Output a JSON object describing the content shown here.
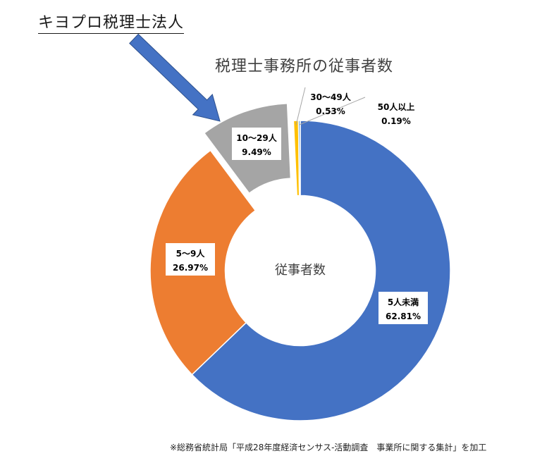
{
  "brand": {
    "name": "キヨプロ税理士法人"
  },
  "footer": {
    "note": "※総務省統計局「平成28年度経済センサス-活動調査　事業所に関する集計」を加工"
  },
  "colors": {
    "arrow": "#4472c4"
  },
  "chart_data": {
    "type": "pie",
    "title": "税理士事務所の従事者数",
    "center_label": "従事者数",
    "hole": 0.5,
    "start_angle": "12 o'clock, clockwise",
    "exploded": "10〜29人",
    "slices": [
      {
        "label": "5人未満",
        "value": 62.81,
        "value_text": "62.81%",
        "color": "#4472c4"
      },
      {
        "label": "5〜9人",
        "value": 26.97,
        "value_text": "26.97%",
        "color": "#ed7d31"
      },
      {
        "label": "10〜29人",
        "value": 9.49,
        "value_text": "9.49%",
        "color": "#a5a5a5"
      },
      {
        "label": "30〜49人",
        "value": 0.53,
        "value_text": "0.53%",
        "color": "#ffc000"
      },
      {
        "label": "50人以上",
        "value": 0.19,
        "value_text": "0.19%",
        "color": "#5b9bd5"
      }
    ]
  }
}
